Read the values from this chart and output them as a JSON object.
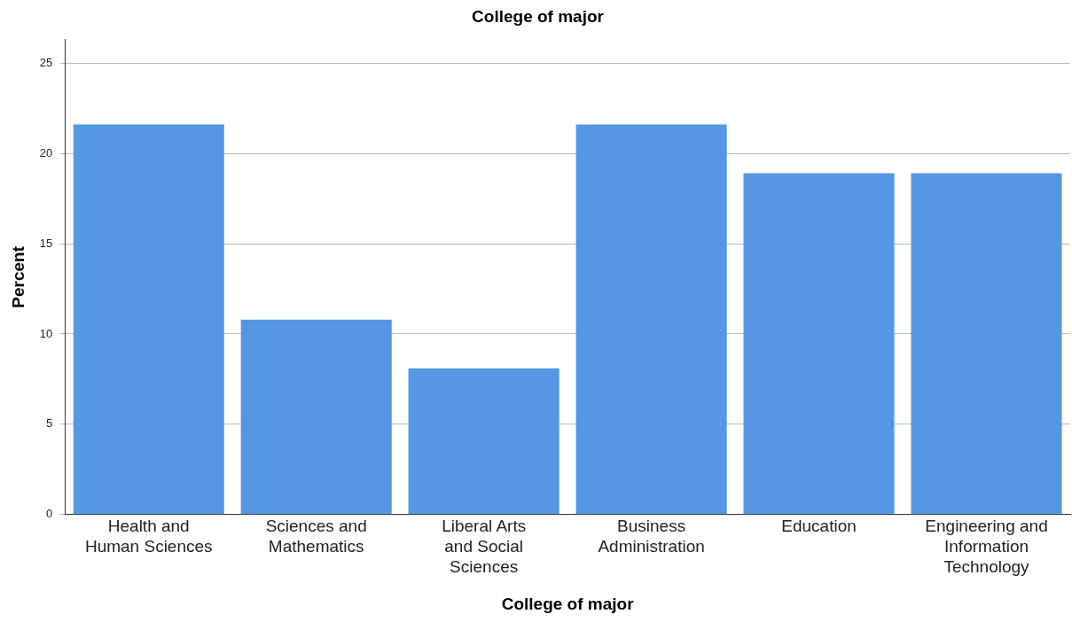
{
  "chart_data": {
    "type": "bar",
    "title": "College of major",
    "xlabel": "College of major",
    "ylabel": "Percent",
    "categories": [
      "Health and Human Sciences",
      "Sciences and Mathematics",
      "Liberal Arts and Social Sciences",
      "Business Administration",
      "Education",
      "Engineering and Information Technology"
    ],
    "values": [
      21.6,
      10.8,
      8.1,
      21.6,
      18.9,
      18.9
    ],
    "color": "#5596e5",
    "ylim": [
      0,
      26.3
    ],
    "yticks": [
      0,
      5,
      10,
      15,
      20,
      25
    ],
    "grid": "y",
    "legend": false
  }
}
